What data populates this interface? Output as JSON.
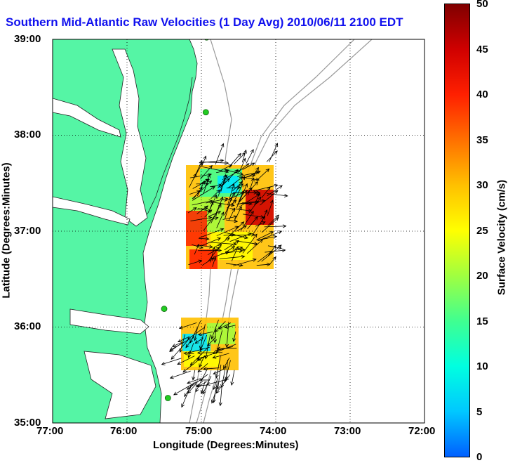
{
  "title": "Southern Mid-Atlantic Raw Velocities (1 Day Avg) 2010/06/11 2100 EDT",
  "xlabel": "Longitude (Degrees:Minutes)",
  "ylabel": "Latitude (Degrees:Minutes)",
  "colorbar": {
    "label": "Surface Velocity (cm/s)",
    "ticks": [
      "0",
      "5",
      "10",
      "15",
      "20",
      "25",
      "30",
      "35",
      "40",
      "45",
      "50"
    ],
    "min": 0,
    "max": 50,
    "colors": [
      "#0060ff",
      "#00c8ff",
      "#00ffe0",
      "#40ff90",
      "#a0ff40",
      "#ffff00",
      "#ffc000",
      "#ff7000",
      "#ff2000",
      "#d00000",
      "#800000"
    ]
  },
  "x_ticks": [
    "77:00",
    "76:00",
    "75:00",
    "74:00",
    "73:00",
    "72:00"
  ],
  "y_ticks": [
    "39:00",
    "38:00",
    "37:00",
    "36:00",
    "35:00"
  ],
  "colors": {
    "land": "#55f5a5",
    "water": "#ffffff",
    "title": "#1010ee",
    "isobath": "#999999",
    "station": "#22cc22"
  },
  "chart_data": {
    "type": "map",
    "xlim_deg_lon": [
      -77.0,
      -72.0
    ],
    "ylim_deg_lat": [
      35.0,
      39.0
    ],
    "grid": true,
    "stations": [
      {
        "lon": -74.93,
        "lat": 39.02
      },
      {
        "lon": -74.94,
        "lat": 38.24
      },
      {
        "lon": -75.5,
        "lat": 36.19
      },
      {
        "lon": -75.45,
        "lat": 35.26
      }
    ]
  }
}
